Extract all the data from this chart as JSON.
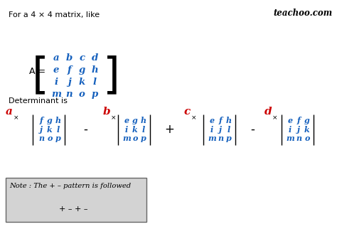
{
  "bg_color": "#ffffff",
  "teachoo_text": "teachoo.com",
  "header_text": "For a 4 × 4 matrix, like",
  "matrix_elements": [
    [
      "a",
      "b",
      "c",
      "d"
    ],
    [
      "e",
      "f",
      "g",
      "h"
    ],
    [
      "i",
      "j",
      "k",
      "l"
    ],
    [
      "m",
      "n",
      "o",
      "p"
    ]
  ],
  "det_label": "Determinant is",
  "blue_color": "#1560bd",
  "red_color": "#cc0000",
  "black_color": "#000000",
  "note_bg": "#d3d3d3",
  "note_text": "Note : The + – pattern is followed",
  "pattern_text": "+ – + –",
  "minor1": [
    [
      "f",
      "g",
      "h"
    ],
    [
      "j",
      "k",
      "l"
    ],
    [
      "n",
      "o",
      "p"
    ]
  ],
  "minor2": [
    [
      "e",
      "g",
      "h"
    ],
    [
      "i",
      "k",
      "l"
    ],
    [
      "m",
      "o",
      "p"
    ]
  ],
  "minor3": [
    [
      "e",
      "f",
      "h"
    ],
    [
      "i",
      "j",
      "l"
    ],
    [
      "m",
      "n",
      "p"
    ]
  ],
  "minor4": [
    [
      "e",
      "f",
      "g"
    ],
    [
      "i",
      "j",
      "k"
    ],
    [
      "m",
      "n",
      "o"
    ]
  ],
  "coeff_labels": [
    "a",
    "b",
    "c",
    "d"
  ],
  "operators": [
    "-",
    "+",
    "-"
  ]
}
